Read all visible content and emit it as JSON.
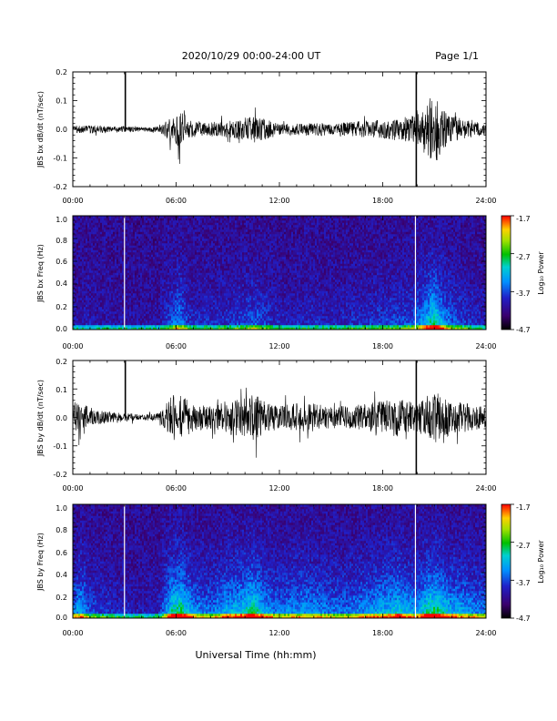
{
  "header": {
    "date_range": "2020/10/29   00:00-24:00 UT",
    "page": "Page 1/1"
  },
  "xlabel": "Universal Time (hh:mm)",
  "x_ticks": [
    "00:00",
    "06:00",
    "12:00",
    "18:00",
    "24:00"
  ],
  "colorbar": {
    "label": "Log₁₀ Power",
    "ticks": [
      "-1.7",
      "-2.7",
      "-3.7",
      "-4.7"
    ]
  },
  "chart_data": [
    {
      "type": "line",
      "title": "",
      "xlabel": "Universal Time (hh:mm)",
      "ylabel": "JBS bx dB/dt (nT/sec)",
      "xlim": [
        0,
        24
      ],
      "ylim": [
        -0.2,
        0.2
      ],
      "y_ticks": [
        "0.2",
        "0.1",
        "0.0",
        "-0.1",
        "-0.2"
      ],
      "activity_envelope": {
        "x_hours": [
          0,
          1,
          2,
          3,
          4,
          5,
          5.8,
          6.2,
          6.8,
          8,
          9,
          10,
          10.6,
          11,
          12,
          13,
          14,
          15,
          16,
          17,
          18,
          19,
          19.9,
          20.5,
          21,
          21.5,
          22,
          23,
          24
        ],
        "amplitude": [
          0.012,
          0.014,
          0.012,
          0.01,
          0.008,
          0.01,
          0.05,
          0.07,
          0.03,
          0.025,
          0.03,
          0.04,
          0.05,
          0.04,
          0.02,
          0.02,
          0.025,
          0.02,
          0.025,
          0.03,
          0.035,
          0.04,
          0.05,
          0.09,
          0.13,
          0.08,
          0.05,
          0.03,
          0.02
        ]
      },
      "spikes": [
        {
          "x_hour": 3.05,
          "y": 0.21
        },
        {
          "x_hour": 19.95,
          "y": 0.21
        },
        {
          "x_hour": 19.95,
          "y": -0.2
        }
      ]
    },
    {
      "type": "heatmap",
      "title": "",
      "xlabel": "Universal Time (hh:mm)",
      "ylabel": "JBS bx Freq (Hz)",
      "xlim": [
        0,
        24
      ],
      "ylim": [
        0,
        1.0
      ],
      "y_ticks": [
        "1.0",
        "0.8",
        "0.6",
        "0.4",
        "0.2",
        "0.0"
      ],
      "color_range": [
        -4.7,
        -1.7
      ],
      "colorbar_label": "Log₁₀ Power",
      "data_gaps_hours": [
        3.0,
        19.9
      ],
      "activity_envelope": {
        "x_hours": [
          0,
          1,
          2,
          3,
          4,
          5,
          5.8,
          6.2,
          6.8,
          8,
          9,
          10,
          10.6,
          11,
          12,
          13,
          14,
          15,
          16,
          17,
          18,
          19,
          19.9,
          20.5,
          21,
          21.5,
          22,
          23,
          24
        ],
        "amplitude": [
          0.012,
          0.014,
          0.012,
          0.01,
          0.008,
          0.01,
          0.05,
          0.07,
          0.03,
          0.025,
          0.03,
          0.04,
          0.05,
          0.04,
          0.02,
          0.02,
          0.025,
          0.02,
          0.025,
          0.03,
          0.035,
          0.04,
          0.05,
          0.09,
          0.13,
          0.08,
          0.05,
          0.03,
          0.02
        ]
      }
    },
    {
      "type": "line",
      "title": "",
      "xlabel": "Universal Time (hh:mm)",
      "ylabel": "JBS by dB/dt (nT/sec)",
      "xlim": [
        0,
        24
      ],
      "ylim": [
        -0.2,
        0.2
      ],
      "y_ticks": [
        "0.2",
        "0.1",
        "0.0",
        "-0.1",
        "-0.2"
      ],
      "activity_envelope": {
        "x_hours": [
          0,
          0.5,
          1,
          2,
          3,
          4,
          5,
          5.8,
          6.3,
          7,
          8,
          9,
          10,
          10.5,
          11,
          12,
          13,
          14,
          15,
          16,
          17,
          18,
          19,
          20,
          20.5,
          21,
          22,
          23,
          24
        ],
        "amplitude": [
          0.04,
          0.06,
          0.03,
          0.02,
          0.015,
          0.01,
          0.015,
          0.08,
          0.09,
          0.05,
          0.04,
          0.06,
          0.07,
          0.09,
          0.06,
          0.04,
          0.05,
          0.05,
          0.04,
          0.04,
          0.05,
          0.06,
          0.07,
          0.05,
          0.08,
          0.09,
          0.06,
          0.05,
          0.04
        ]
      },
      "spikes": [
        {
          "x_hour": 3.05,
          "y": 0.21
        },
        {
          "x_hour": 19.95,
          "y": 0.21
        },
        {
          "x_hour": 19.95,
          "y": -0.2
        }
      ]
    },
    {
      "type": "heatmap",
      "title": "",
      "xlabel": "Universal Time (hh:mm)",
      "ylabel": "JBS by Freq (Hz)",
      "xlim": [
        0,
        24
      ],
      "ylim": [
        0,
        1.0
      ],
      "y_ticks": [
        "1.0",
        "0.8",
        "0.6",
        "0.4",
        "0.2",
        "0.0"
      ],
      "color_range": [
        -4.7,
        -1.7
      ],
      "colorbar_label": "Log₁₀ Power",
      "data_gaps_hours": [
        3.0,
        19.9
      ],
      "activity_envelope": {
        "x_hours": [
          0,
          0.5,
          1,
          2,
          3,
          4,
          5,
          5.8,
          6.3,
          7,
          8,
          9,
          10,
          10.5,
          11,
          12,
          13,
          14,
          15,
          16,
          17,
          18,
          19,
          20,
          20.5,
          21,
          22,
          23,
          24
        ],
        "amplitude": [
          0.04,
          0.06,
          0.03,
          0.02,
          0.015,
          0.01,
          0.015,
          0.08,
          0.09,
          0.05,
          0.04,
          0.06,
          0.07,
          0.09,
          0.06,
          0.04,
          0.05,
          0.05,
          0.04,
          0.04,
          0.05,
          0.06,
          0.07,
          0.05,
          0.08,
          0.09,
          0.06,
          0.05,
          0.04
        ]
      }
    }
  ]
}
